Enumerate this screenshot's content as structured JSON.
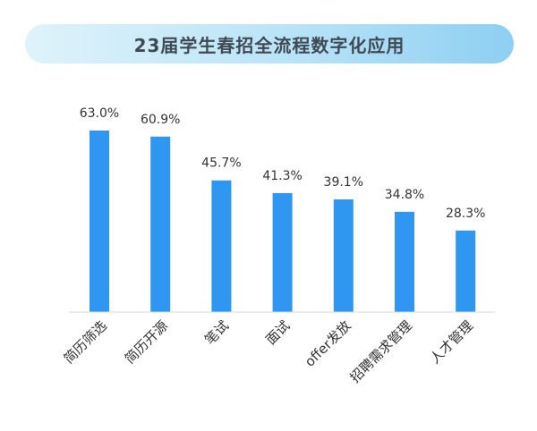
{
  "title": "23届学生春招全流程数字化应用",
  "chart_data": {
    "type": "bar",
    "title": "23届学生春招全流程数字化应用",
    "categories": [
      "简历筛选",
      "简历开源",
      "笔试",
      "面试",
      "offer发放",
      "招聘需求管理",
      "人才管理"
    ],
    "values": [
      63.0,
      60.9,
      45.7,
      41.3,
      39.1,
      34.8,
      28.3
    ],
    "value_labels": [
      "63.0%",
      "60.9%",
      "45.7%",
      "41.3%",
      "39.1%",
      "34.8%",
      "28.3%"
    ],
    "xlabel": "",
    "ylabel": "",
    "bar_color": "#2f97f2",
    "grid": false,
    "legend": "none"
  }
}
